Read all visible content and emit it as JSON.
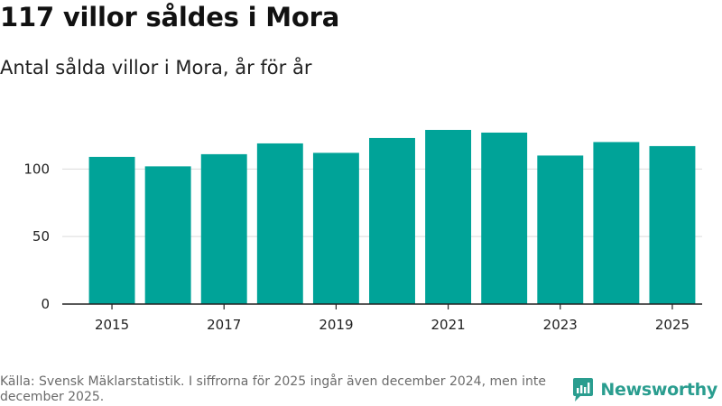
{
  "title": "117 villor såldes i Mora",
  "subtitle": "Antal sålda villor i Mora, år för år",
  "source": "Källa: Svensk Mäklarstatistik. I siffrorna för 2025 ingår även december 2024, men inte december 2025.",
  "brand": {
    "name": "Newsworthy",
    "icon": "newsworthy-logo-icon"
  },
  "colors": {
    "bar": "#00a398",
    "grid": "#dcdcdc",
    "axis": "#222222",
    "brand": "#2a9d8f"
  },
  "chart_data": {
    "type": "bar",
    "title": "117 villor såldes i Mora",
    "subtitle": "Antal sålda villor i Mora, år för år",
    "categories": [
      "2015",
      "2016",
      "2017",
      "2018",
      "2019",
      "2020",
      "2021",
      "2022",
      "2023",
      "2024",
      "2025"
    ],
    "values": [
      109,
      102,
      111,
      119,
      112,
      123,
      129,
      127,
      110,
      120,
      117
    ],
    "x_tick_labels": [
      "2015",
      "2017",
      "2019",
      "2021",
      "2023",
      "2025"
    ],
    "y_ticks": [
      0,
      50,
      100
    ],
    "y_tick_labels": [
      "0",
      "50",
      "100"
    ],
    "ylim": [
      0,
      135
    ],
    "xlabel": "",
    "ylabel": "",
    "grid": true
  }
}
